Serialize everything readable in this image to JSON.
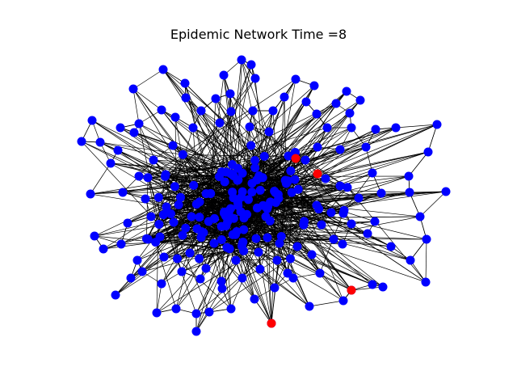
{
  "title": "Epidemic Network Time =8",
  "colors": {
    "susceptible": "#0000ff",
    "infected": "#ff0000",
    "edge": "#000000",
    "background": "#ffffff"
  },
  "node_count": 200,
  "infected_count": 4
}
